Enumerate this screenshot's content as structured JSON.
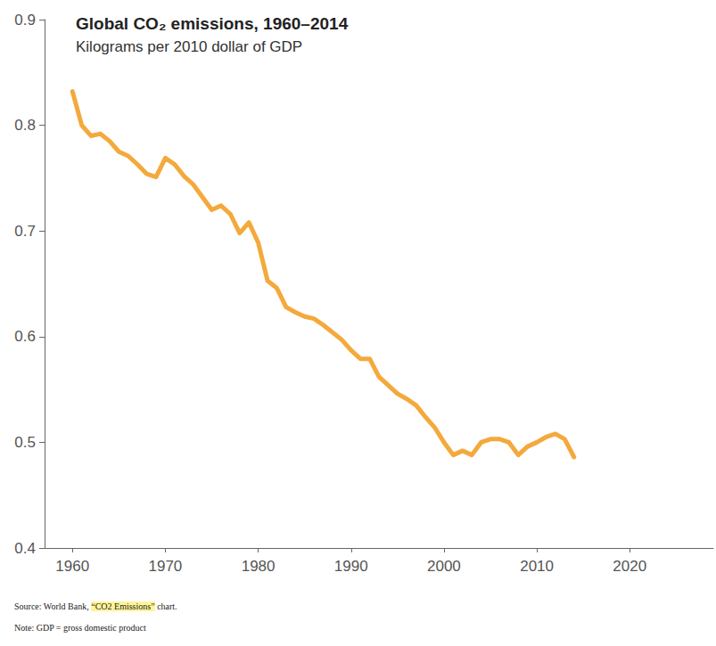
{
  "chart_data": {
    "type": "line",
    "title": "Global CO₂ emissions, 1960–2014",
    "subtitle": "Kilograms per 2010 dollar of GDP",
    "x": [
      1960,
      1961,
      1962,
      1963,
      1964,
      1965,
      1966,
      1967,
      1968,
      1969,
      1970,
      1971,
      1972,
      1973,
      1974,
      1975,
      1976,
      1977,
      1978,
      1979,
      1980,
      1981,
      1982,
      1983,
      1984,
      1985,
      1986,
      1987,
      1988,
      1989,
      1990,
      1991,
      1992,
      1993,
      1994,
      1995,
      1996,
      1997,
      1998,
      1999,
      2000,
      2001,
      2002,
      2003,
      2004,
      2005,
      2006,
      2007,
      2008,
      2009,
      2010,
      2011,
      2012,
      2013,
      2014
    ],
    "values": [
      0.832,
      0.8,
      0.79,
      0.792,
      0.785,
      0.775,
      0.771,
      0.763,
      0.754,
      0.751,
      0.769,
      0.763,
      0.752,
      0.744,
      0.732,
      0.72,
      0.724,
      0.716,
      0.698,
      0.708,
      0.689,
      0.653,
      0.646,
      0.628,
      0.623,
      0.619,
      0.617,
      0.611,
      0.604,
      0.597,
      0.587,
      0.579,
      0.579,
      0.562,
      0.554,
      0.546,
      0.541,
      0.535,
      0.524,
      0.514,
      0.5,
      0.488,
      0.492,
      0.488,
      0.5,
      0.503,
      0.503,
      0.5,
      0.488,
      0.496,
      0.5,
      0.505,
      0.508,
      0.503,
      0.486
    ],
    "color": "#f4a93c",
    "xlim": [
      1957,
      2029
    ],
    "xticks": [
      1960,
      1970,
      1980,
      1990,
      2000,
      2010,
      2020
    ],
    "ylim": [
      0.4,
      0.9
    ],
    "yticks": [
      0.4,
      0.5,
      0.6,
      0.7,
      0.8,
      0.9
    ],
    "grid": false,
    "source": "Source: World Bank, “CO2 Emissions” chart.",
    "note": "Note: GDP = gross domestic product"
  }
}
